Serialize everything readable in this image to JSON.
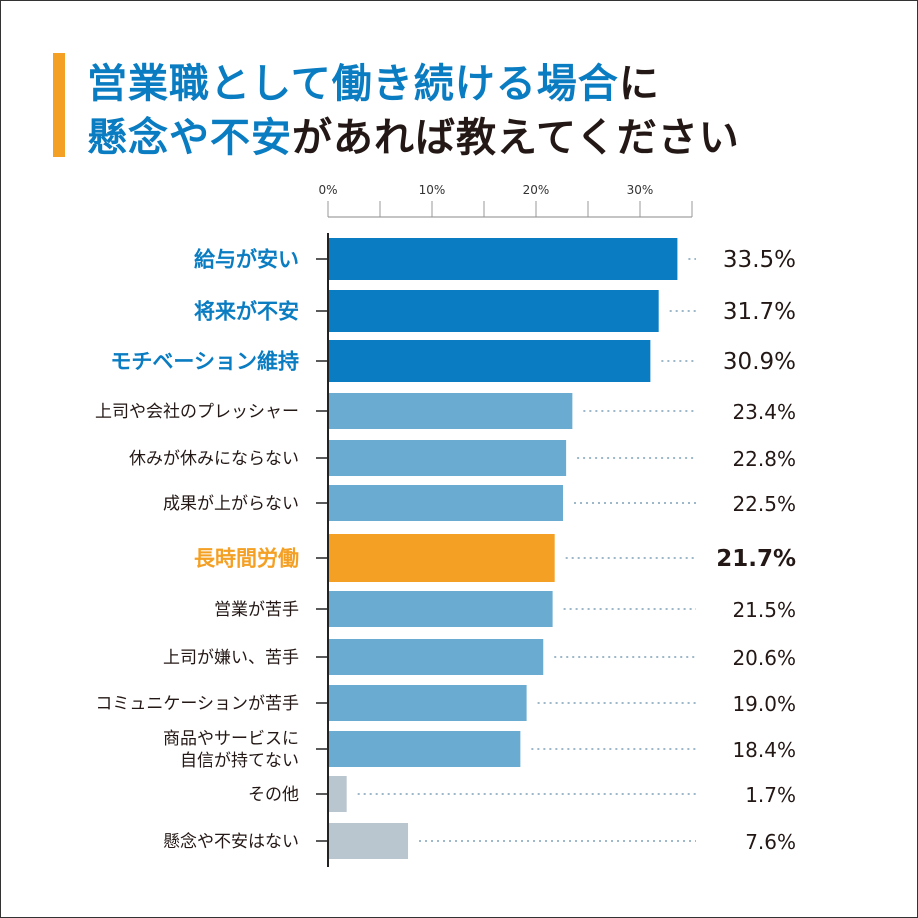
{
  "title": {
    "line1_blue": "営業職として働き続ける場合",
    "line1_black": "に",
    "line2_blue": "懸念や不安",
    "line2_black": "があれば教えてください"
  },
  "colors": {
    "accent": "#f4a024",
    "top": "#0a7cc1",
    "normal": "#6aabd2",
    "highlight": "#f4a024",
    "other": "#b9c6cf"
  },
  "chart_data": {
    "type": "bar",
    "orientation": "horizontal",
    "xlim": [
      0,
      35
    ],
    "ticks": [
      {
        "v": 0,
        "label": "0%"
      },
      {
        "v": 10,
        "label": "10%"
      },
      {
        "v": 20,
        "label": "20%"
      },
      {
        "v": 30,
        "label": "30%"
      }
    ],
    "categories": [
      {
        "label": [
          "給与が安い"
        ],
        "value": 33.5,
        "text": "33.5%",
        "style": "top"
      },
      {
        "label": [
          "将来が不安"
        ],
        "value": 31.7,
        "text": "31.7%",
        "style": "top"
      },
      {
        "label": [
          "モチベーション維持"
        ],
        "value": 30.9,
        "text": "30.9%",
        "style": "top"
      },
      {
        "label": [
          "上司や会社のプレッシャー"
        ],
        "value": 23.4,
        "text": "23.4%",
        "style": "normal"
      },
      {
        "label": [
          "休みが休みにならない"
        ],
        "value": 22.8,
        "text": "22.8%",
        "style": "normal"
      },
      {
        "label": [
          "成果が上がらない"
        ],
        "value": 22.5,
        "text": "22.5%",
        "style": "normal"
      },
      {
        "label": [
          "長時間労働"
        ],
        "value": 21.7,
        "text": "21.7%",
        "style": "highlight"
      },
      {
        "label": [
          "営業が苦手"
        ],
        "value": 21.5,
        "text": "21.5%",
        "style": "normal"
      },
      {
        "label": [
          "上司が嫌い、苦手"
        ],
        "value": 20.6,
        "text": "20.6%",
        "style": "normal"
      },
      {
        "label": [
          "コミュニケーションが苦手"
        ],
        "value": 19.0,
        "text": "19.0%",
        "style": "normal"
      },
      {
        "label": [
          "商品やサービスに",
          "自信が持てない"
        ],
        "value": 18.4,
        "text": "18.4%",
        "style": "normal"
      },
      {
        "label": [
          "その他"
        ],
        "value": 1.7,
        "text": "1.7%",
        "style": "other"
      },
      {
        "label": [
          "懸念や不安はない"
        ],
        "value": 7.6,
        "text": "7.6%",
        "style": "other"
      }
    ]
  }
}
